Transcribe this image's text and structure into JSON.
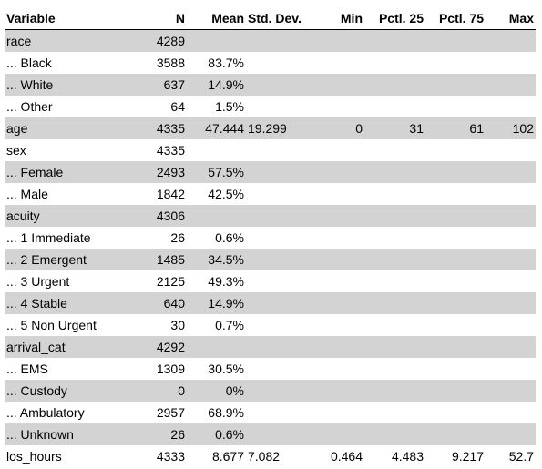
{
  "headers": [
    "Variable",
    "N",
    "Mean",
    "Std. Dev.",
    "Min",
    "Pctl. 25",
    "Pctl. 75",
    "Max"
  ],
  "rows": [
    {
      "shade": true,
      "cells": [
        "race",
        "4289",
        "",
        "",
        "",
        "",
        "",
        ""
      ]
    },
    {
      "shade": false,
      "cells": [
        "... Black",
        "3588",
        "83.7%",
        "",
        "",
        "",
        "",
        ""
      ]
    },
    {
      "shade": true,
      "cells": [
        "... White",
        "637",
        "14.9%",
        "",
        "",
        "",
        "",
        ""
      ]
    },
    {
      "shade": false,
      "cells": [
        "... Other",
        "64",
        "1.5%",
        "",
        "",
        "",
        "",
        ""
      ]
    },
    {
      "shade": true,
      "cells": [
        "age",
        "4335",
        "47.444",
        "19.299",
        "0",
        "31",
        "61",
        "102"
      ]
    },
    {
      "shade": false,
      "cells": [
        "sex",
        "4335",
        "",
        "",
        "",
        "",
        "",
        ""
      ]
    },
    {
      "shade": true,
      "cells": [
        "... Female",
        "2493",
        "57.5%",
        "",
        "",
        "",
        "",
        ""
      ]
    },
    {
      "shade": false,
      "cells": [
        "... Male",
        "1842",
        "42.5%",
        "",
        "",
        "",
        "",
        ""
      ]
    },
    {
      "shade": true,
      "cells": [
        "acuity",
        "4306",
        "",
        "",
        "",
        "",
        "",
        ""
      ]
    },
    {
      "shade": false,
      "cells": [
        "... 1 Immediate",
        "26",
        "0.6%",
        "",
        "",
        "",
        "",
        ""
      ]
    },
    {
      "shade": true,
      "cells": [
        "... 2 Emergent",
        "1485",
        "34.5%",
        "",
        "",
        "",
        "",
        ""
      ]
    },
    {
      "shade": false,
      "cells": [
        "... 3 Urgent",
        "2125",
        "49.3%",
        "",
        "",
        "",
        "",
        ""
      ]
    },
    {
      "shade": true,
      "cells": [
        "... 4 Stable",
        "640",
        "14.9%",
        "",
        "",
        "",
        "",
        ""
      ]
    },
    {
      "shade": false,
      "cells": [
        "... 5 Non Urgent",
        "30",
        "0.7%",
        "",
        "",
        "",
        "",
        ""
      ]
    },
    {
      "shade": true,
      "cells": [
        "arrival_cat",
        "4292",
        "",
        "",
        "",
        "",
        "",
        ""
      ]
    },
    {
      "shade": false,
      "cells": [
        "... EMS",
        "1309",
        "30.5%",
        "",
        "",
        "",
        "",
        ""
      ]
    },
    {
      "shade": true,
      "cells": [
        "... Custody",
        "0",
        "0%",
        "",
        "",
        "",
        "",
        ""
      ]
    },
    {
      "shade": false,
      "cells": [
        "... Ambulatory",
        "2957",
        "68.9%",
        "",
        "",
        "",
        "",
        ""
      ]
    },
    {
      "shade": true,
      "cells": [
        "... Unknown",
        "26",
        "0.6%",
        "",
        "",
        "",
        "",
        ""
      ]
    },
    {
      "shade": false,
      "cells": [
        "los_hours",
        "4333",
        "8.677",
        "7.082",
        "0.464",
        "4.483",
        "9.217",
        "52.7"
      ]
    }
  ],
  "colors": {
    "shade": "#d3d3d3",
    "text": "#000000",
    "background": "#ffffff"
  }
}
